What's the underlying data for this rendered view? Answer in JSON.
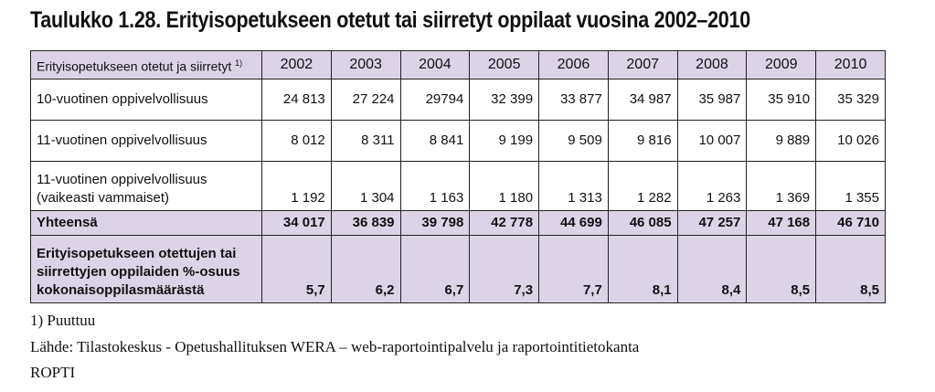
{
  "title": "Taulukko 1.28. Erityisopetukseen otetut tai siirretyt oppilaat vuosina 2002–2010",
  "table": {
    "header_label": "Erityisopetukseen otetut ja siirretyt",
    "header_footnote": "1)",
    "years": [
      "2002",
      "2003",
      "2004",
      "2005",
      "2006",
      "2007",
      "2008",
      "2009",
      "2010"
    ],
    "rows": [
      {
        "label_lines": [
          "10-vuotinen oppivelvollisuus"
        ],
        "values": [
          "24 813",
          "27 224",
          "29794",
          "32 399",
          "33 877",
          "34 987",
          "35 987",
          "35 910",
          "35 329"
        ]
      },
      {
        "label_lines": [
          "11-vuotinen oppivelvollisuus"
        ],
        "values": [
          "8 012",
          "8 311",
          "8 841",
          "9 199",
          "9 509",
          "9 816",
          "10 007",
          "9 889",
          "10 026"
        ]
      },
      {
        "label_lines": [
          "11-vuotinen oppivelvollisuus",
          "(vaikeasti vammaiset)"
        ],
        "values": [
          "1 192",
          "1 304",
          "1 163",
          "1 180",
          "1 313",
          "1 282",
          "1 263",
          "1 369",
          "1 355"
        ]
      }
    ],
    "total": {
      "label": "Yhteensä",
      "values": [
        "34 017",
        "36 839",
        "39 798",
        "42 778",
        "44 699",
        "46 085",
        "47 257",
        "47 168",
        "46 710"
      ]
    },
    "share": {
      "label_lines": [
        "Erityisopetukseen otettujen tai",
        "siirrettyjen oppilaiden %-osuus",
        "kokonaisoppilasmäärästä"
      ],
      "values": [
        "5,7",
        "6,2",
        "6,7",
        "7,3",
        "7,7",
        "8,1",
        "8,4",
        "8,5",
        "8,5"
      ]
    }
  },
  "footnote": "1) Puuttuu",
  "source_line1": "Lähde: Tilastokeskus - Opetushallituksen WERA – web-raportointipalvelu ja raportointitietokanta",
  "source_line2": "ROPTI"
}
